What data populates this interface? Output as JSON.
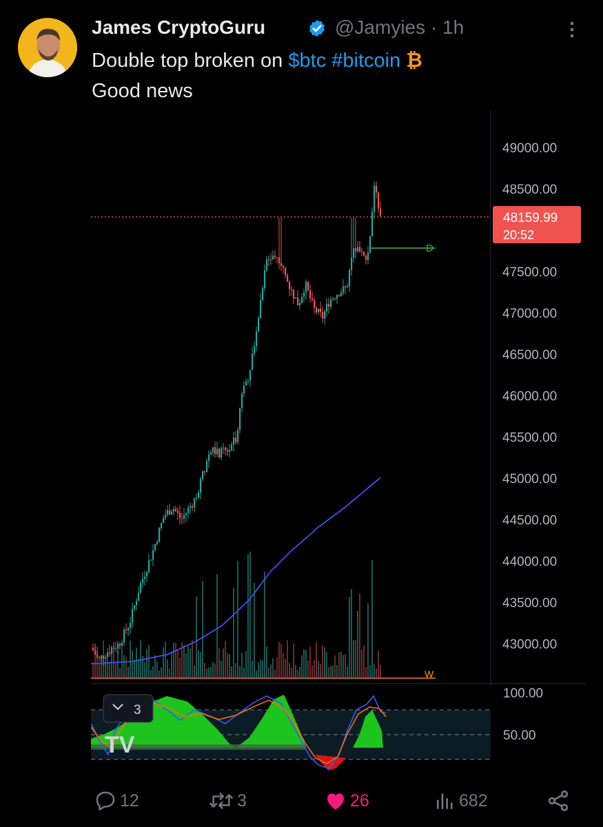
{
  "tweet": {
    "author_name": "James CryptoGuru",
    "handle": "@Jamyies",
    "separator": "·",
    "time": "1h",
    "text_prefix": "Double top broken on ",
    "cashtag": "$btc",
    "hashtag": "#bitcoin",
    "btc_icon": "₿",
    "text_line2": "Good news",
    "verified_badge_icon": "verified-badge-icon",
    "accent_color": "#1d9bf0"
  },
  "actions": {
    "replies": "12",
    "retweets": "3",
    "likes": "26",
    "views": "682",
    "like_color": "#f91880"
  },
  "chart_data": {
    "type": "candlestick",
    "price_axis_ticks": [
      "49000.00",
      "48500.00",
      "47500.00",
      "47000.00",
      "46500.00",
      "46000.00",
      "45500.00",
      "45000.00",
      "44500.00",
      "44000.00",
      "43500.00",
      "43000.00"
    ],
    "price_range": [
      42600,
      49350
    ],
    "current_price": "48159.99",
    "countdown": "20:52",
    "level_label": "D",
    "volume_label": "W",
    "oscillator_ticks": [
      "100.00",
      "50.00"
    ],
    "oscillator_collapse_label": "3",
    "logo_text": "TV",
    "up_color": "#26a69a",
    "down_color": "#ef5350",
    "ma_color": "#3f51f5"
  }
}
